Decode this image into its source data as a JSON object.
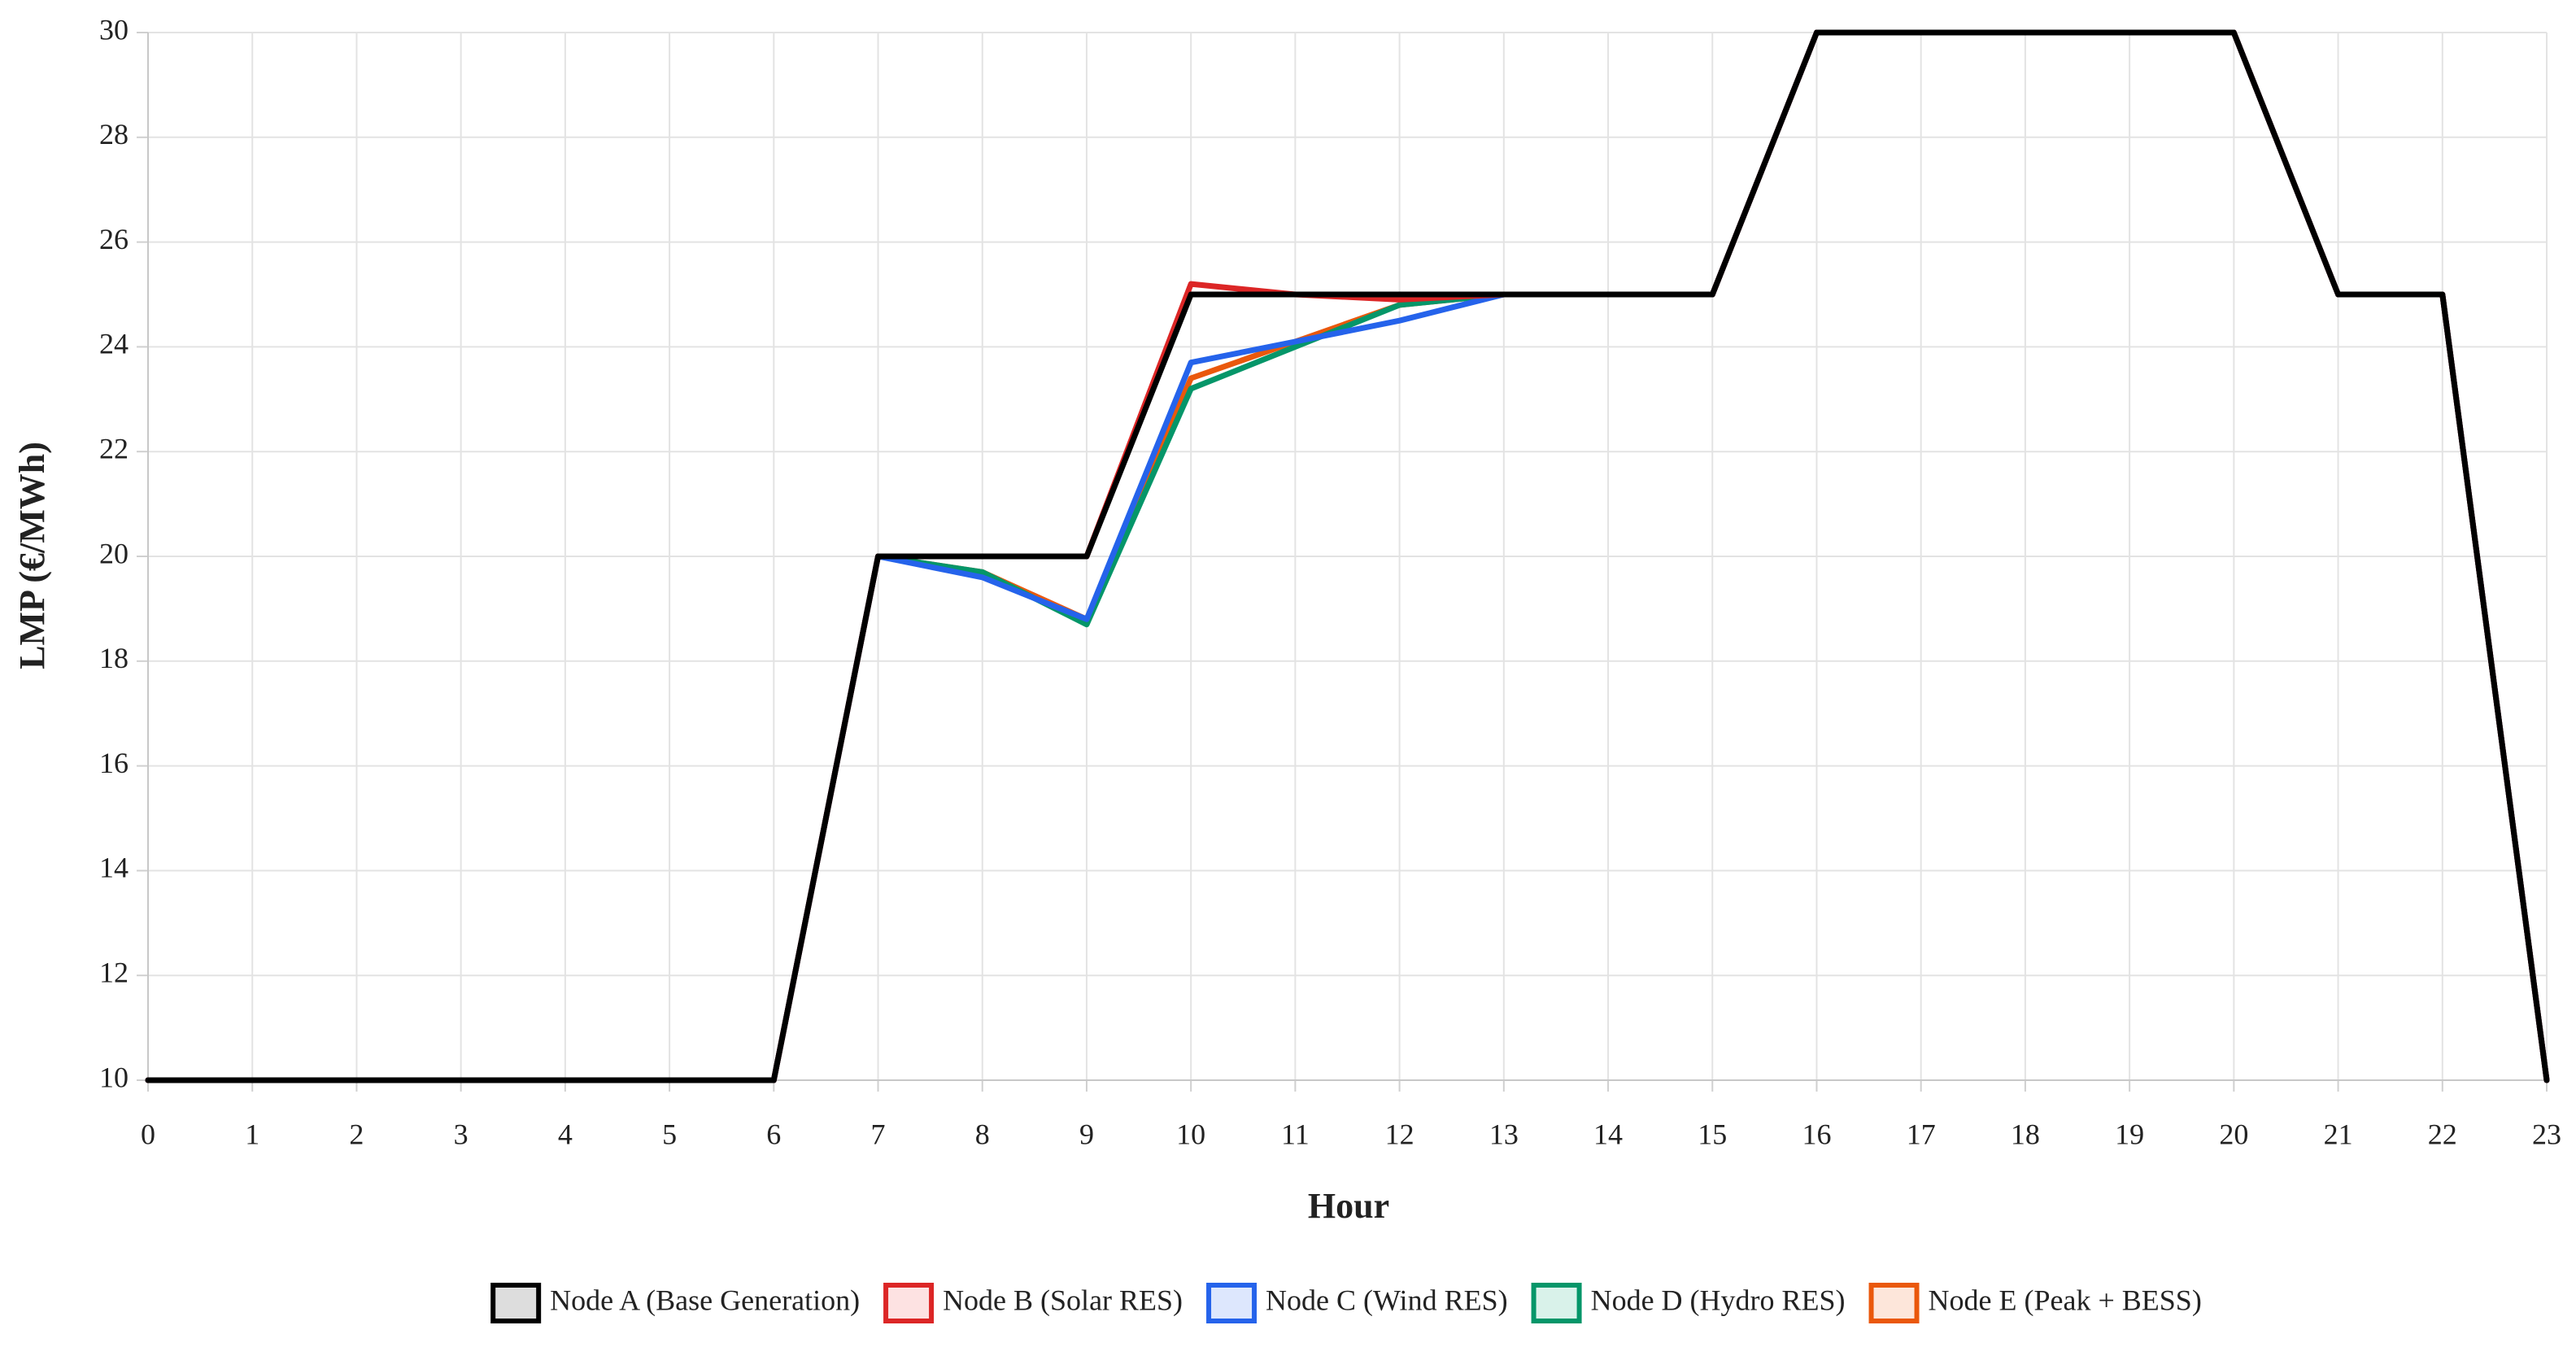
{
  "chart_data": {
    "type": "line",
    "x_label": "Hour",
    "y_label": "LMP (€/MWh)",
    "x": [
      0,
      1,
      2,
      3,
      4,
      5,
      6,
      7,
      8,
      9,
      10,
      11,
      12,
      13,
      14,
      15,
      16,
      17,
      18,
      19,
      20,
      21,
      22,
      23
    ],
    "xlim": [
      0,
      23
    ],
    "xticks": [
      0,
      1,
      2,
      3,
      4,
      5,
      6,
      7,
      8,
      9,
      10,
      11,
      12,
      13,
      14,
      15,
      16,
      17,
      18,
      19,
      20,
      21,
      22,
      23
    ],
    "ylim": [
      10,
      30
    ],
    "yticks": [
      10,
      12,
      14,
      16,
      18,
      20,
      22,
      24,
      26,
      28,
      30
    ],
    "grid": true,
    "legend": "bottom",
    "series": [
      {
        "name": "Node A (Base Generation)",
        "color": "#000000",
        "fill": "#dddddd",
        "values": [
          10,
          10,
          10,
          10,
          10,
          10,
          10,
          20,
          20,
          20,
          25,
          25,
          25,
          25,
          25,
          25,
          30,
          30,
          30,
          30,
          30,
          25,
          25,
          10
        ]
      },
      {
        "name": "Node B (Solar RES)",
        "color": "#dc2626",
        "fill": "#fde2e2",
        "values": [
          10,
          10,
          10,
          10,
          10,
          10,
          10,
          20,
          20,
          20,
          25.2,
          25,
          24.9,
          25,
          25,
          25,
          30,
          30,
          30,
          30,
          30,
          25,
          25,
          10
        ]
      },
      {
        "name": "Node C (Wind RES)",
        "color": "#2563eb",
        "fill": "#dde7fd",
        "values": [
          10,
          10,
          10,
          10,
          10,
          10,
          10,
          20,
          19.6,
          18.8,
          23.7,
          24.1,
          24.5,
          25,
          25,
          25,
          30,
          30,
          30,
          30,
          30,
          25,
          25,
          10
        ]
      },
      {
        "name": "Node D (Hydro RES)",
        "color": "#059669",
        "fill": "#d9f2ea",
        "values": [
          10,
          10,
          10,
          10,
          10,
          10,
          10,
          20,
          19.7,
          18.7,
          23.2,
          24,
          24.8,
          25,
          25,
          25,
          30,
          30,
          30,
          30,
          30,
          25,
          25,
          10
        ]
      },
      {
        "name": "Node E (Peak + BESS)",
        "color": "#ea580c",
        "fill": "#fde6da",
        "values": [
          10,
          10,
          10,
          10,
          10,
          10,
          10,
          20,
          19.7,
          18.8,
          23.4,
          24.1,
          24.8,
          25,
          25,
          25,
          30,
          30,
          30,
          30,
          30,
          25,
          25,
          10
        ]
      }
    ]
  }
}
